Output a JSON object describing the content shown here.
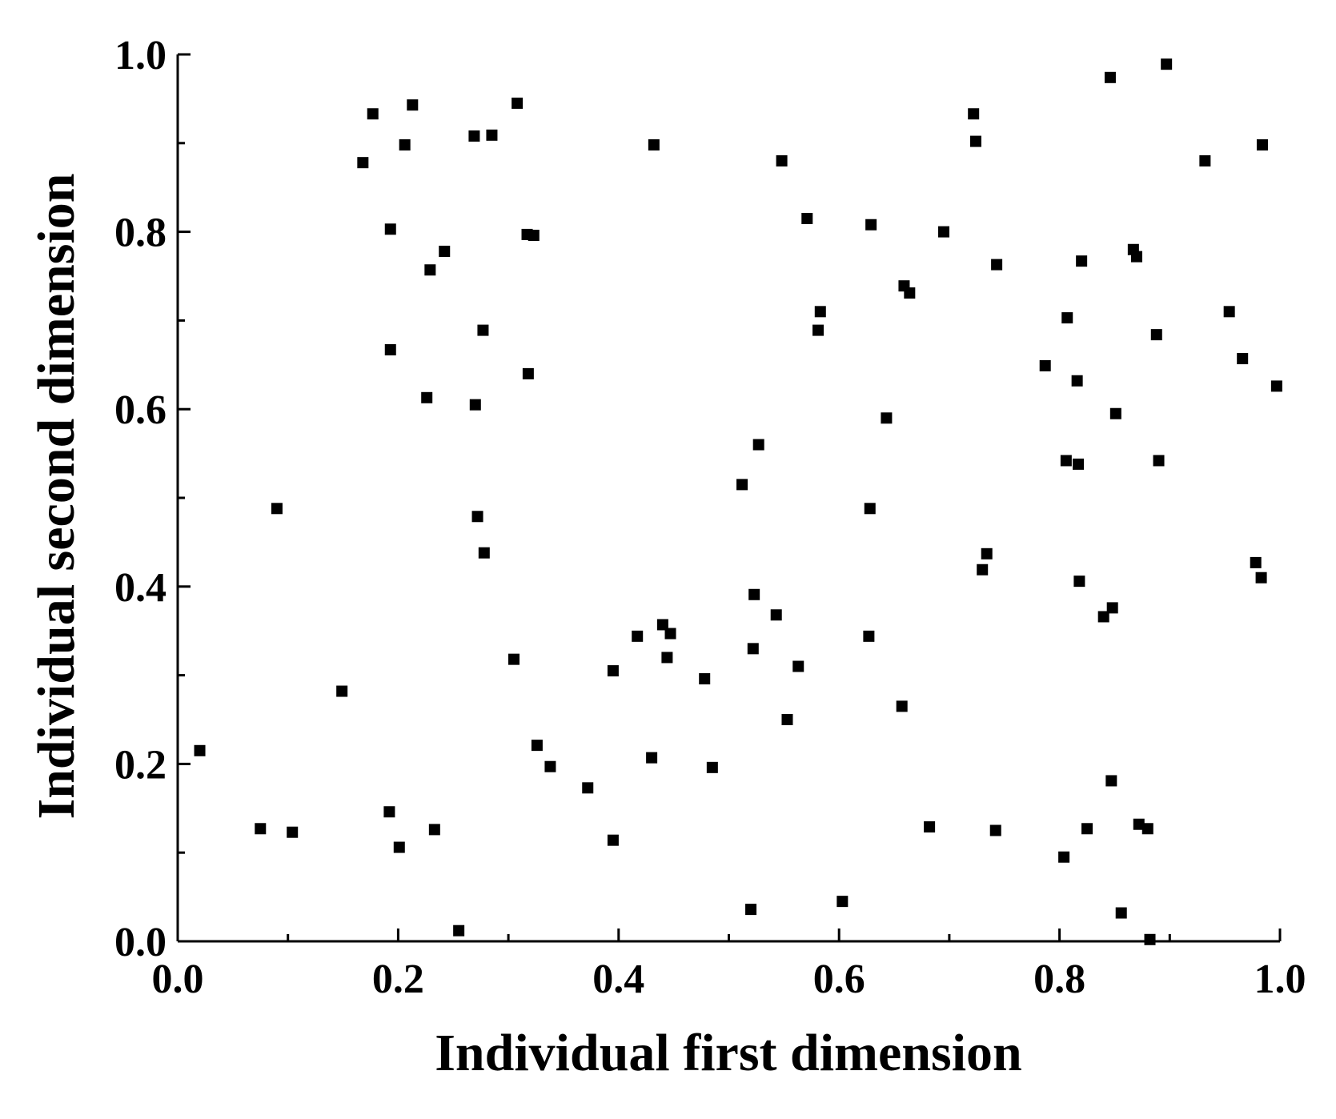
{
  "chart_data": {
    "type": "scatter",
    "title": "",
    "xlabel": "Individual first dimension",
    "ylabel": "Individual second dimension",
    "xlim": [
      0.0,
      1.0
    ],
    "ylim": [
      0.0,
      1.0
    ],
    "x_ticks": [
      "0.0",
      "0.2",
      "0.4",
      "0.6",
      "0.8",
      "1.0"
    ],
    "y_ticks": [
      "0.0",
      "0.2",
      "0.4",
      "0.6",
      "0.8",
      "1.0"
    ],
    "x_tick_values": [
      0.0,
      0.2,
      0.4,
      0.6,
      0.8,
      1.0
    ],
    "y_tick_values": [
      0.0,
      0.2,
      0.4,
      0.6,
      0.8,
      1.0
    ],
    "grid": false,
    "legend": "none",
    "marker": "square",
    "marker_color": "#000000",
    "series": [
      {
        "points": [
          [
            0.02,
            0.215
          ],
          [
            0.075,
            0.127
          ],
          [
            0.09,
            0.488
          ],
          [
            0.104,
            0.123
          ],
          [
            0.149,
            0.282
          ],
          [
            0.168,
            0.878
          ],
          [
            0.177,
            0.933
          ],
          [
            0.192,
            0.146
          ],
          [
            0.193,
            0.803
          ],
          [
            0.193,
            0.667
          ],
          [
            0.201,
            0.106
          ],
          [
            0.206,
            0.898
          ],
          [
            0.213,
            0.943
          ],
          [
            0.226,
            0.613
          ],
          [
            0.229,
            0.757
          ],
          [
            0.233,
            0.126
          ],
          [
            0.242,
            0.778
          ],
          [
            0.255,
            0.012
          ],
          [
            0.269,
            0.908
          ],
          [
            0.27,
            0.605
          ],
          [
            0.272,
            0.479
          ],
          [
            0.277,
            0.689
          ],
          [
            0.278,
            0.438
          ],
          [
            0.285,
            0.909
          ],
          [
            0.305,
            0.318
          ],
          [
            0.308,
            0.945
          ],
          [
            0.317,
            0.797
          ],
          [
            0.318,
            0.64
          ],
          [
            0.323,
            0.796
          ],
          [
            0.326,
            0.221
          ],
          [
            0.338,
            0.197
          ],
          [
            0.372,
            0.173
          ],
          [
            0.395,
            0.305
          ],
          [
            0.395,
            0.114
          ],
          [
            0.417,
            0.344
          ],
          [
            0.43,
            0.207
          ],
          [
            0.432,
            0.898
          ],
          [
            0.44,
            0.357
          ],
          [
            0.444,
            0.32
          ],
          [
            0.447,
            0.347
          ],
          [
            0.478,
            0.296
          ],
          [
            0.485,
            0.196
          ],
          [
            0.512,
            0.515
          ],
          [
            0.52,
            0.036
          ],
          [
            0.522,
            0.33
          ],
          [
            0.523,
            0.391
          ],
          [
            0.527,
            0.56
          ],
          [
            0.543,
            0.368
          ],
          [
            0.548,
            0.88
          ],
          [
            0.553,
            0.25
          ],
          [
            0.563,
            0.31
          ],
          [
            0.571,
            0.815
          ],
          [
            0.581,
            0.689
          ],
          [
            0.583,
            0.71
          ],
          [
            0.603,
            0.045
          ],
          [
            0.627,
            0.344
          ],
          [
            0.628,
            0.488
          ],
          [
            0.629,
            0.808
          ],
          [
            0.643,
            0.59
          ],
          [
            0.657,
            0.265
          ],
          [
            0.659,
            0.739
          ],
          [
            0.664,
            0.731
          ],
          [
            0.682,
            0.129
          ],
          [
            0.695,
            0.8
          ],
          [
            0.722,
            0.933
          ],
          [
            0.724,
            0.902
          ],
          [
            0.73,
            0.419
          ],
          [
            0.734,
            0.437
          ],
          [
            0.742,
            0.125
          ],
          [
            0.743,
            0.763
          ],
          [
            0.787,
            0.649
          ],
          [
            0.804,
            0.095
          ],
          [
            0.806,
            0.542
          ],
          [
            0.807,
            0.703
          ],
          [
            0.816,
            0.632
          ],
          [
            0.817,
            0.538
          ],
          [
            0.818,
            0.406
          ],
          [
            0.82,
            0.767
          ],
          [
            0.825,
            0.127
          ],
          [
            0.84,
            0.366
          ],
          [
            0.846,
            0.974
          ],
          [
            0.847,
            0.181
          ],
          [
            0.848,
            0.376
          ],
          [
            0.851,
            0.595
          ],
          [
            0.856,
            0.032
          ],
          [
            0.867,
            0.78
          ],
          [
            0.87,
            0.772
          ],
          [
            0.872,
            0.132
          ],
          [
            0.88,
            0.127
          ],
          [
            0.882,
            0.002
          ],
          [
            0.888,
            0.684
          ],
          [
            0.89,
            0.542
          ],
          [
            0.897,
            0.989
          ],
          [
            0.932,
            0.88
          ],
          [
            0.954,
            0.71
          ],
          [
            0.966,
            0.657
          ],
          [
            0.978,
            0.427
          ],
          [
            0.983,
            0.41
          ],
          [
            0.984,
            0.898
          ],
          [
            0.997,
            0.626
          ]
        ]
      }
    ]
  }
}
